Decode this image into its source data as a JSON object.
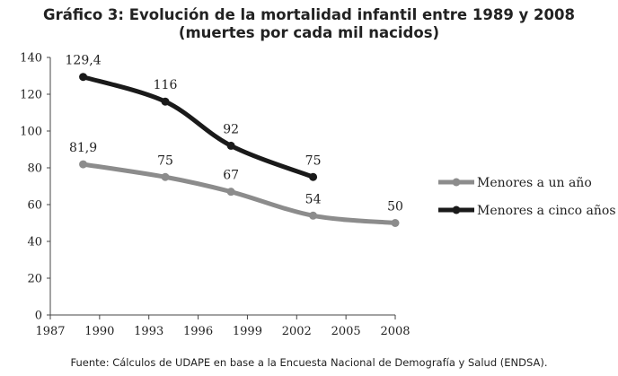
{
  "chart_data": {
    "type": "line",
    "title": "Gráfico 3: Evolución de la mortalidad infantil entre 1989 y 2008",
    "subtitle": "(muertes por cada mil nacidos)",
    "source": "Fuente: Cálculos de UDAPE en base a la Encuesta Nacional de Demografía y Salud (ENDSA).",
    "xlabel": "",
    "ylabel": "",
    "xlim": [
      1987,
      2008
    ],
    "ylim": [
      0,
      140
    ],
    "x_ticks": [
      1987,
      1990,
      1993,
      1996,
      1999,
      2002,
      2005,
      2008
    ],
    "y_ticks": [
      0,
      20,
      40,
      60,
      80,
      100,
      120,
      140
    ],
    "legend_position": "right",
    "grid": false,
    "series": [
      {
        "name": "Menores a un año",
        "color": "#8c8c8c",
        "x": [
          1989,
          1994,
          1998,
          2003,
          2008
        ],
        "values": [
          81.9,
          75,
          67,
          54,
          50
        ],
        "labels": [
          "81,9",
          "75",
          "67",
          "54",
          "50"
        ]
      },
      {
        "name": "Menores a cinco años",
        "color": "#1a1a1a",
        "x": [
          1989,
          1994,
          1998,
          2003
        ],
        "values": [
          129.4,
          116,
          92,
          75
        ],
        "labels": [
          "129,4",
          "116",
          "92",
          "75"
        ]
      }
    ]
  }
}
